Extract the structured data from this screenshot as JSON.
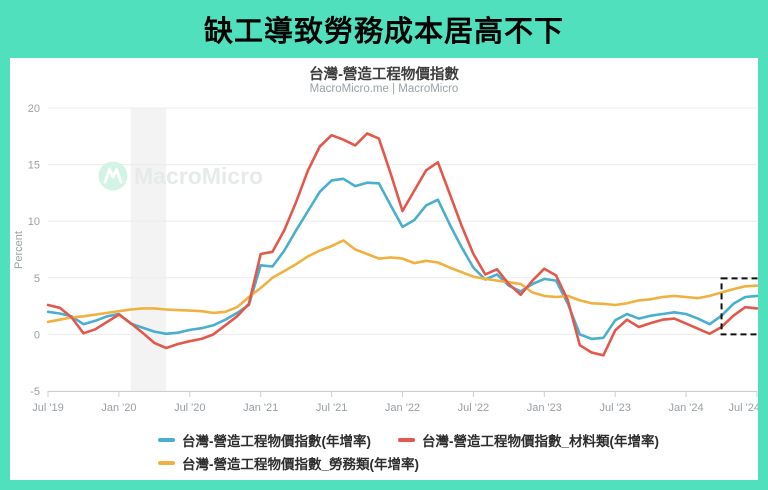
{
  "banner": {
    "title": "缺工導致勞務成本居高不下"
  },
  "chart": {
    "title": "台灣-營造工程物價指數",
    "subtitle": "MacroMicro.me | MacroMicro",
    "watermark_text": "MacroMicro",
    "watermark_icon": "macromicro-m-icon"
  },
  "colors": {
    "page_background": "#50e0bd",
    "card_background": "#ffffff",
    "gridline": "#ececec",
    "axis": "#cfcfcf",
    "tick_text": "#9aa0a4",
    "recession_band": "#f3f3f3",
    "highlight_box": "#111111",
    "watermark_text": "#e7eaea",
    "watermark_circle": "#d2f3e6",
    "series_blue": "#4aafce",
    "series_red": "#e2584b",
    "series_yellow": "#f1b140"
  },
  "chart_data": {
    "type": "line",
    "title": "台灣-營造工程物價指數",
    "subtitle": "MacroMicro.me | MacroMicro",
    "xlabel": "",
    "ylabel": "Percent",
    "ylim": [
      -5,
      20
    ],
    "yticks": [
      20,
      15,
      10,
      5,
      0,
      -5
    ],
    "x_unit": "month",
    "x_start": "2019-07",
    "x_end": "2024-07",
    "xtick_labels": [
      "Jul '19",
      "Jan '20",
      "Jul '20",
      "Jan '21",
      "Jul '21",
      "Jan '22",
      "Jul '22",
      "Jan '23",
      "Jul '23",
      "Jan '24",
      "Jul '24"
    ],
    "xtick_month_indices": [
      0,
      6,
      12,
      18,
      24,
      30,
      36,
      42,
      48,
      54,
      60
    ],
    "grid": "horizontal",
    "legend_position": "bottom",
    "recession_band": {
      "from_index": 7,
      "to_index": 10
    },
    "highlight_box": {
      "from_index": 57,
      "to_index": 60,
      "value_from": 0.0,
      "value_to": 4.95
    },
    "series": [
      {
        "name": "台灣-營造工程物價指數(年增率)",
        "color": "#4aafce",
        "values": [
          2.0,
          1.85,
          1.6,
          0.9,
          1.2,
          1.6,
          1.8,
          0.95,
          0.6,
          0.25,
          0.05,
          0.15,
          0.4,
          0.55,
          0.8,
          1.3,
          1.9,
          2.6,
          6.1,
          6.0,
          7.4,
          9.2,
          10.9,
          12.6,
          13.6,
          13.75,
          13.1,
          13.4,
          13.35,
          11.4,
          9.5,
          10.1,
          11.4,
          11.9,
          9.7,
          7.7,
          5.9,
          4.85,
          5.3,
          4.3,
          3.8,
          4.45,
          4.9,
          4.75,
          2.7,
          0.0,
          -0.4,
          -0.3,
          1.25,
          1.8,
          1.4,
          1.65,
          1.8,
          1.95,
          1.8,
          1.4,
          0.9,
          1.65,
          2.7,
          3.3,
          3.4
        ]
      },
      {
        "name": "台灣-營造工程物價指數_材料類(年增率)",
        "color": "#e2584b",
        "values": [
          2.6,
          2.35,
          1.5,
          0.1,
          0.45,
          1.1,
          1.75,
          1.0,
          0.15,
          -0.75,
          -1.2,
          -0.85,
          -0.6,
          -0.4,
          0.0,
          0.8,
          1.6,
          2.7,
          7.1,
          7.3,
          9.2,
          11.7,
          14.5,
          16.6,
          17.6,
          17.2,
          16.7,
          17.75,
          17.3,
          14.2,
          10.9,
          12.7,
          14.5,
          15.2,
          12.4,
          9.6,
          7.1,
          5.3,
          5.75,
          4.45,
          3.5,
          4.75,
          5.8,
          5.2,
          3.0,
          -0.95,
          -1.6,
          -1.85,
          0.35,
          1.3,
          0.65,
          1.0,
          1.3,
          1.4,
          0.95,
          0.5,
          0.05,
          0.65,
          1.65,
          2.4,
          2.3
        ]
      },
      {
        "name": "台灣-營造工程物價指數_勞務類(年增率)",
        "color": "#f1b140",
        "values": [
          1.1,
          1.3,
          1.5,
          1.6,
          1.75,
          1.9,
          2.05,
          2.2,
          2.3,
          2.3,
          2.2,
          2.15,
          2.1,
          2.05,
          1.9,
          2.0,
          2.4,
          3.3,
          4.1,
          5.0,
          5.6,
          6.2,
          6.9,
          7.4,
          7.8,
          8.3,
          7.5,
          7.1,
          6.7,
          6.8,
          6.7,
          6.3,
          6.5,
          6.35,
          5.9,
          5.5,
          5.1,
          4.9,
          4.75,
          4.6,
          4.45,
          3.7,
          3.4,
          3.3,
          3.4,
          3.0,
          2.75,
          2.7,
          2.6,
          2.75,
          3.0,
          3.1,
          3.3,
          3.4,
          3.3,
          3.2,
          3.4,
          3.7,
          4.0,
          4.25,
          4.3
        ]
      }
    ]
  }
}
